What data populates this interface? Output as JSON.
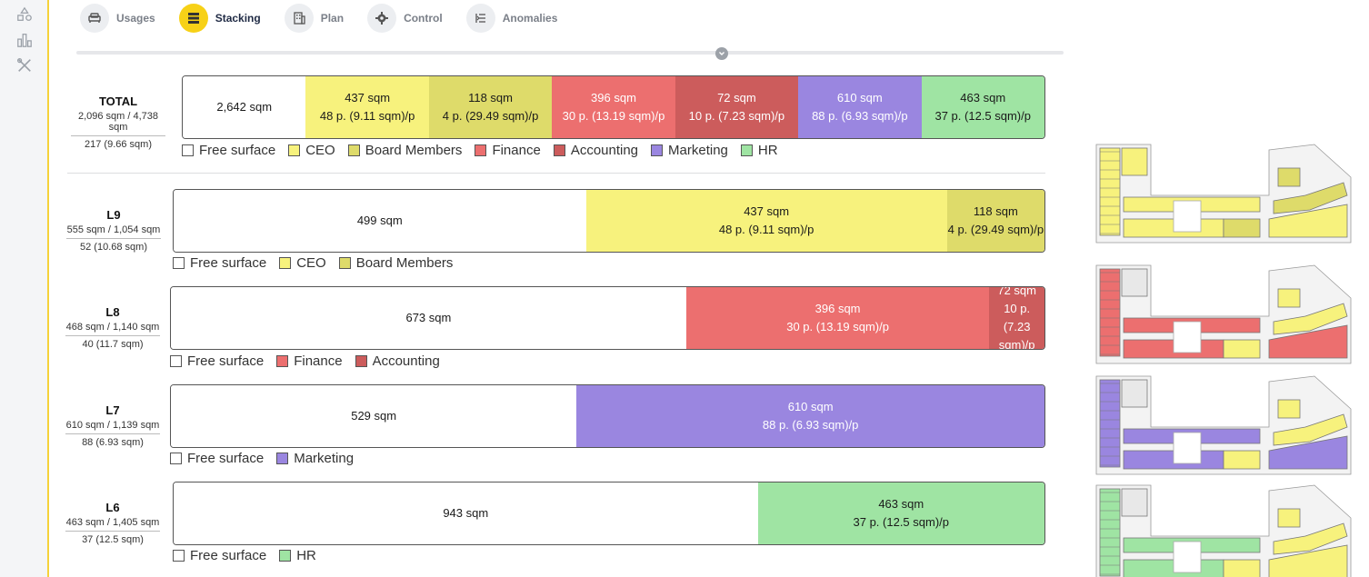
{
  "colors": {
    "free": "#ffffff",
    "ceo": "#f7f27d",
    "board": "#dedb6a",
    "finance": "#ec6f6f",
    "accounting": "#cc5c5c",
    "marketing": "#9a86e0",
    "hr": "#9fe4a3",
    "accent": "#f7d117"
  },
  "rail": {
    "icons": [
      "shapes-icon",
      "building-chart-icon",
      "tools-icon"
    ]
  },
  "tabs": [
    {
      "label": "Usages",
      "icon": "sofa-icon",
      "active": false
    },
    {
      "label": "Stacking",
      "icon": "stacking-icon",
      "active": true
    },
    {
      "label": "Plan",
      "icon": "building-icon",
      "active": false
    },
    {
      "label": "Control",
      "icon": "gear-icon",
      "active": false
    },
    {
      "label": "Anomalies",
      "icon": "list-alert-icon",
      "active": false
    }
  ],
  "total": {
    "name": "TOTAL",
    "line1": "2,096 sqm / 4,738 sqm",
    "line2": "217 (9.66 sqm)",
    "segments": [
      {
        "key": "free",
        "a": "2,642 sqm",
        "b": ""
      },
      {
        "key": "ceo",
        "a": "437 sqm",
        "b": "48 p. (9.11 sqm)/p"
      },
      {
        "key": "board",
        "a": "118 sqm",
        "b": "4 p. (29.49 sqm)/p"
      },
      {
        "key": "finance",
        "a": "396 sqm",
        "b": "30 p. (13.19 sqm)/p"
      },
      {
        "key": "accounting",
        "a": "72 sqm",
        "b": "10 p. (7.23 sqm)/p"
      },
      {
        "key": "marketing",
        "a": "610 sqm",
        "b": "88 p. (6.93 sqm)/p"
      },
      {
        "key": "hr",
        "a": "463 sqm",
        "b": "37 p. (12.5 sqm)/p"
      }
    ],
    "legend": [
      "Free surface",
      "CEO",
      "Board Members",
      "Finance",
      "Accounting",
      "Marketing",
      "HR"
    ]
  },
  "floors": [
    {
      "name": "L9",
      "line1": "555 sqm / 1,054 sqm",
      "line2": "52 (10.68 sqm)",
      "segments": [
        {
          "key": "free",
          "a": "499 sqm",
          "b": ""
        },
        {
          "key": "ceo",
          "a": "437 sqm",
          "b": "48 p. (9.11 sqm)/p"
        },
        {
          "key": "board",
          "a": "118 sqm",
          "b": "4 p. (29.49 sqm)/p"
        }
      ],
      "legend": [
        "Free surface",
        "CEO",
        "Board Members"
      ]
    },
    {
      "name": "L8",
      "line1": "468 sqm / 1,140 sqm",
      "line2": "40 (11.7 sqm)",
      "segments": [
        {
          "key": "free",
          "a": "673 sqm",
          "b": ""
        },
        {
          "key": "finance",
          "a": "396 sqm",
          "b": "30 p. (13.19 sqm)/p"
        },
        {
          "key": "accounting",
          "a": "72 sqm",
          "b": "10 p. (7.23 sqm)/p"
        }
      ],
      "legend": [
        "Free surface",
        "Finance",
        "Accounting"
      ]
    },
    {
      "name": "L7",
      "line1": "610 sqm / 1,139 sqm",
      "line2": "88 (6.93 sqm)",
      "segments": [
        {
          "key": "free",
          "a": "529 sqm",
          "b": ""
        },
        {
          "key": "marketing",
          "a": "610 sqm",
          "b": "88 p. (6.93 sqm)/p"
        }
      ],
      "legend": [
        "Free surface",
        "Marketing"
      ]
    },
    {
      "name": "L6",
      "line1": "463 sqm / 1,405 sqm",
      "line2": "37 (12.5 sqm)",
      "segments": [
        {
          "key": "free",
          "a": "943 sqm",
          "b": ""
        },
        {
          "key": "hr",
          "a": "463 sqm",
          "b": "37 p. (12.5 sqm)/p"
        }
      ],
      "legend": [
        "Free surface",
        "HR"
      ]
    }
  ],
  "plans": [
    {
      "floor": "L9",
      "main": "ceo",
      "secondary": "board"
    },
    {
      "floor": "L8",
      "main": "finance",
      "secondary": "ceo"
    },
    {
      "floor": "L7",
      "main": "marketing",
      "secondary": "ceo"
    },
    {
      "floor": "L6",
      "main": "hr",
      "secondary": "ceo"
    }
  ]
}
